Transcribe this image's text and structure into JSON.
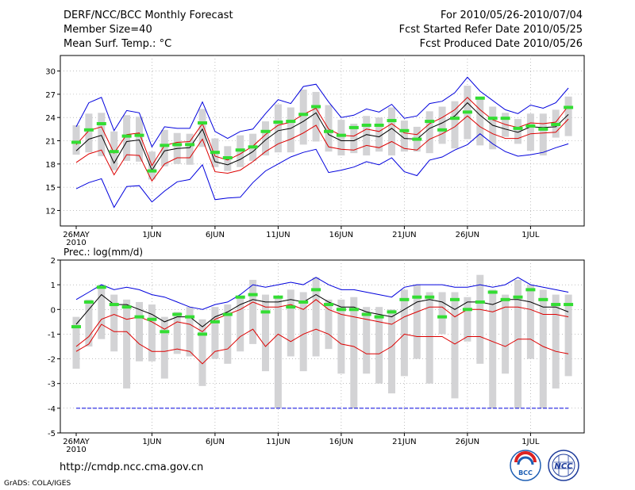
{
  "header": {
    "title": "DERF/NCC/BCC Monthly Forecast",
    "member_size": "Member Size=40",
    "variable": "Mean Surf. Temp.: °C",
    "forecast_period": "For 2010/05/26-2010/07/04",
    "started_refer": "Fcst Started Refer Date 2010/05/25",
    "produced": "Fcst Produced Date 2010/05/26"
  },
  "footer": {
    "url": "http://cmdp.ncc.cma.gov.cn",
    "grads_credit": "GrADS: COLA/IGES",
    "logo_left": "BCC",
    "logo_right": "NCC"
  },
  "colors": {
    "max_min": "#0000dd",
    "percentile": "#dd0000",
    "mean": "#000000",
    "median": "#33dd33",
    "boxes": "#d3d3d5"
  },
  "chart_data": [
    {
      "type": "box-line",
      "name": "temperature",
      "title": "Mean Surf. Temp.: °C",
      "ylim": [
        10,
        32
      ],
      "yticks": [
        12,
        15,
        18,
        21,
        24,
        27,
        30
      ],
      "xtick_labels": [
        "26MAY",
        "1JUN",
        "6JUN",
        "11JUN",
        "16JUN",
        "21JUN",
        "26JUN",
        "1JUL"
      ],
      "xtick_days": [
        0,
        6,
        11,
        16,
        21,
        26,
        31,
        36
      ],
      "x_year": "2010",
      "days": 40,
      "series": [
        {
          "name": "max",
          "values": [
            14.8,
            15.6,
            16.1,
            12.4,
            15.1,
            15.2,
            13.1,
            14.5,
            15.7,
            16.0,
            17.9,
            13.4,
            13.6,
            13.7,
            15.6,
            17.1,
            18.0,
            18.9,
            19.5,
            19.9,
            16.9,
            17.2,
            17.6,
            18.3,
            17.9,
            18.8,
            17.0,
            16.5,
            18.5,
            18.9,
            19.8,
            20.5,
            21.9,
            20.6,
            19.6,
            19.0,
            19.2,
            19.5,
            20.1,
            20.6
          ]
        },
        {
          "name": "p90",
          "values": [
            18.2,
            19.3,
            19.8,
            16.6,
            19.2,
            19.1,
            15.8,
            18.0,
            18.8,
            18.8,
            21.2,
            17.0,
            16.8,
            17.2,
            18.3,
            19.6,
            20.6,
            21.2,
            22.0,
            23.0,
            20.2,
            19.9,
            19.8,
            20.4,
            20.1,
            20.9,
            20.0,
            19.8,
            21.2,
            21.9,
            22.8,
            24.2,
            22.8,
            21.9,
            21.3,
            21.3,
            21.9,
            22.0,
            22.1,
            23.8
          ]
        },
        {
          "name": "mean",
          "values": [
            19.7,
            21.2,
            21.7,
            18.1,
            20.9,
            21.1,
            17.2,
            19.7,
            20.0,
            20.1,
            22.5,
            18.3,
            17.9,
            18.6,
            19.6,
            21.1,
            22.3,
            22.6,
            23.5,
            24.6,
            21.8,
            21.0,
            21.0,
            21.8,
            21.5,
            22.6,
            21.3,
            21.2,
            22.6,
            23.3,
            24.2,
            25.9,
            24.3,
            23.0,
            22.5,
            22.1,
            22.8,
            22.7,
            22.8,
            24.4
          ]
        },
        {
          "name": "p10",
          "values": [
            20.5,
            22.3,
            22.8,
            19.4,
            21.8,
            22.0,
            17.8,
            20.4,
            20.8,
            20.9,
            23.2,
            19.0,
            18.5,
            19.3,
            20.3,
            21.8,
            23.0,
            23.4,
            24.4,
            25.2,
            22.5,
            21.7,
            21.6,
            22.5,
            22.2,
            23.2,
            22.0,
            21.8,
            23.2,
            24.0,
            25.0,
            26.6,
            25.0,
            23.7,
            23.1,
            22.7,
            23.3,
            23.2,
            23.4,
            25.5
          ]
        },
        {
          "name": "min",
          "values": [
            22.8,
            25.9,
            26.6,
            22.3,
            24.9,
            24.6,
            20.2,
            22.8,
            22.6,
            22.6,
            26.0,
            22.2,
            21.3,
            22.2,
            22.5,
            24.5,
            26.3,
            25.8,
            28.0,
            28.3,
            26.0,
            24.0,
            24.3,
            25.1,
            24.7,
            25.7,
            23.9,
            24.2,
            25.8,
            26.1,
            27.2,
            29.2,
            27.4,
            26.2,
            25.0,
            24.5,
            25.6,
            25.2,
            25.9,
            27.8
          ]
        },
        {
          "name": "median",
          "values": [
            20.8,
            22.4,
            23.2,
            19.6,
            21.6,
            21.7,
            17.1,
            20.4,
            20.5,
            20.5,
            23.3,
            19.5,
            18.8,
            19.8,
            20.2,
            22.2,
            23.4,
            23.5,
            24.4,
            25.4,
            22.2,
            21.7,
            22.7,
            23.0,
            23.0,
            23.6,
            22.3,
            21.2,
            23.5,
            22.4,
            23.9,
            24.7,
            26.5,
            23.9,
            23.9,
            22.6,
            22.9,
            22.5,
            23.1,
            25.3
          ]
        },
        {
          "name": "box_low",
          "values": [
            19.2,
            19.5,
            19.0,
            17.2,
            18.4,
            18.3,
            16.0,
            17.7,
            18.0,
            17.9,
            20.2,
            17.6,
            17.1,
            17.6,
            18.4,
            19.1,
            19.5,
            19.5,
            20.5,
            20.9,
            19.6,
            19.1,
            19.4,
            19.1,
            19.6,
            19.1,
            19.6,
            19.6,
            19.4,
            20.6,
            20.0,
            21.2,
            20.4,
            19.9,
            21.5,
            20.6,
            19.7,
            19.1,
            21.4,
            21.6
          ]
        },
        {
          "name": "box_high",
          "values": [
            23.0,
            24.5,
            24.6,
            22.2,
            24.3,
            24.1,
            19.6,
            22.4,
            22.0,
            21.9,
            25.1,
            21.3,
            20.3,
            21.7,
            21.9,
            23.5,
            25.7,
            25.3,
            27.6,
            27.3,
            25.6,
            23.7,
            23.2,
            24.2,
            24.0,
            25.3,
            23.6,
            22.8,
            24.8,
            25.4,
            26.1,
            28.1,
            26.6,
            25.4,
            24.6,
            23.8,
            24.5,
            24.5,
            25.0,
            26.7
          ]
        }
      ]
    },
    {
      "type": "box-line",
      "name": "precipitation",
      "title": "Prec.: log(mm/d)",
      "ylim": [
        -5,
        2
      ],
      "yticks": [
        -5,
        -4,
        -3,
        -2,
        -1,
        0,
        1,
        2
      ],
      "xtick_labels": [
        "26MAY",
        "1JUN",
        "6JUN",
        "11JUN",
        "16JUN",
        "21JUN",
        "26JUN",
        "1JUL"
      ],
      "xtick_days": [
        0,
        6,
        11,
        16,
        21,
        26,
        31,
        36
      ],
      "x_year": "2010",
      "days": 40,
      "series": [
        {
          "name": "max",
          "values": [
            0.4,
            0.7,
            1.0,
            0.8,
            0.9,
            0.8,
            0.6,
            0.5,
            0.3,
            0.1,
            0.0,
            0.2,
            0.3,
            0.6,
            1.0,
            0.9,
            1.0,
            1.1,
            1.0,
            1.3,
            1.0,
            0.8,
            0.8,
            0.7,
            0.6,
            0.5,
            0.9,
            1.0,
            1.0,
            1.0,
            0.9,
            0.9,
            1.0,
            0.9,
            1.0,
            1.3,
            1.0,
            0.9,
            0.8,
            0.7
          ]
        },
        {
          "name": "mean",
          "values": [
            -0.6,
            0.0,
            0.6,
            0.2,
            0.2,
            0.0,
            -0.2,
            -0.5,
            -0.3,
            -0.3,
            -0.7,
            -0.3,
            -0.1,
            0.2,
            0.4,
            0.3,
            0.3,
            0.4,
            0.3,
            0.6,
            0.3,
            0.1,
            0.1,
            -0.1,
            -0.2,
            -0.3,
            0.0,
            0.3,
            0.4,
            0.3,
            0.0,
            0.3,
            0.3,
            0.2,
            0.4,
            0.4,
            0.3,
            0.1,
            0.1,
            -0.1
          ]
        },
        {
          "name": "p90",
          "values": [
            -1.5,
            -1.1,
            -0.4,
            -0.2,
            -0.4,
            -0.3,
            -0.5,
            -0.8,
            -0.5,
            -0.6,
            -0.9,
            -0.4,
            -0.2,
            0.0,
            0.3,
            0.1,
            0.1,
            0.2,
            0.0,
            0.4,
            0.0,
            -0.2,
            -0.3,
            -0.4,
            -0.5,
            -0.6,
            -0.3,
            -0.1,
            0.1,
            0.1,
            -0.3,
            0.0,
            0.0,
            -0.1,
            0.1,
            0.1,
            0.0,
            -0.2,
            -0.2,
            -0.3
          ]
        },
        {
          "name": "p10",
          "values": [
            -1.7,
            -1.4,
            -0.6,
            -0.9,
            -0.9,
            -1.4,
            -1.7,
            -1.7,
            -1.6,
            -1.7,
            -2.2,
            -1.7,
            -1.6,
            -1.1,
            -0.8,
            -1.5,
            -1.0,
            -1.3,
            -1.0,
            -0.8,
            -1.0,
            -1.4,
            -1.5,
            -1.8,
            -1.8,
            -1.5,
            -1.0,
            -1.1,
            -1.1,
            -1.1,
            -1.4,
            -1.1,
            -1.1,
            -1.3,
            -1.5,
            -1.2,
            -1.2,
            -1.5,
            -1.7,
            -1.8
          ]
        },
        {
          "name": "min",
          "values": [
            -4,
            -4,
            -4,
            -4,
            -4,
            -4,
            -4,
            -4,
            -4,
            -4,
            -4,
            -4,
            -4,
            -4,
            -4,
            -4,
            -4,
            -4,
            -4,
            -4,
            -4,
            -4,
            -4,
            -4,
            -4,
            -4,
            -4,
            -4,
            -4,
            -4,
            -4,
            -4,
            -4,
            -4,
            -4,
            -4,
            -4,
            -4,
            -4,
            -4
          ]
        },
        {
          "name": "median",
          "values": [
            -0.7,
            0.3,
            0.9,
            0.2,
            0.1,
            -0.3,
            -0.4,
            -0.9,
            -0.2,
            -0.3,
            -1.0,
            -0.5,
            -0.2,
            0.5,
            0.6,
            -0.1,
            0.5,
            0.1,
            0.3,
            0.8,
            0.2,
            0.0,
            0.0,
            -0.2,
            -0.3,
            -0.1,
            0.4,
            0.5,
            0.5,
            -0.3,
            0.4,
            0.0,
            0.3,
            0.7,
            0.4,
            0.5,
            0.8,
            0.4,
            0.2,
            0.2
          ]
        },
        {
          "name": "box_low",
          "values": [
            -2.4,
            -1.5,
            -1.2,
            -1.7,
            -3.2,
            -2.1,
            -2.1,
            -2.8,
            -1.8,
            -1.9,
            -3.1,
            -2.0,
            -2.2,
            -1.7,
            -1.4,
            -2.5,
            -4.0,
            -1.9,
            -2.5,
            -1.9,
            -1.6,
            -2.6,
            -4.0,
            -2.6,
            -3.0,
            -3.4,
            -2.7,
            -2.0,
            -3.0,
            -1.0,
            -3.6,
            -1.3,
            -2.2,
            -4.0,
            -2.6,
            -4.0,
            -2.0,
            -4.0,
            -3.2,
            -2.7
          ]
        },
        {
          "name": "box_high",
          "values": [
            -0.3,
            0.4,
            1.0,
            0.6,
            0.4,
            0.3,
            0.2,
            -0.3,
            -0.1,
            0.1,
            -0.4,
            0.1,
            0.2,
            0.5,
            1.2,
            0.6,
            0.5,
            0.8,
            0.7,
            1.3,
            0.4,
            0.4,
            0.5,
            0.1,
            0.1,
            0.0,
            0.8,
            1.0,
            0.7,
            0.7,
            0.7,
            0.5,
            1.4,
            0.8,
            0.6,
            1.2,
            1.0,
            0.8,
            0.6,
            0.6
          ]
        }
      ]
    }
  ]
}
